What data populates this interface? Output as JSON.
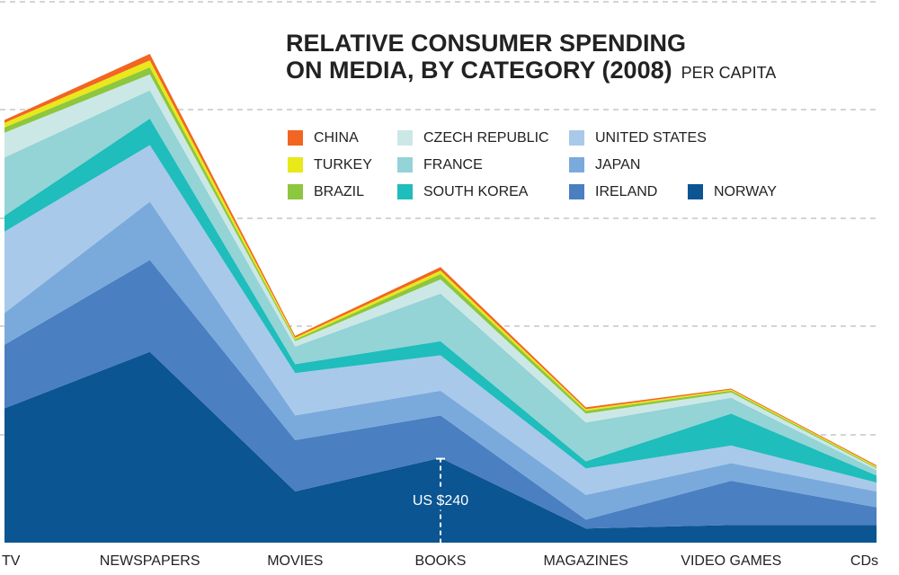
{
  "chart_data": {
    "type": "stacked-area",
    "title": [
      "RELATIVE CONSUMER SPENDING",
      "ON MEDIA, BY CATEGORY (2008)"
    ],
    "subtitle": "PER CAPITA",
    "annotation": "US $240",
    "categories": [
      "TV",
      "NEWSPAPERS",
      "MOVIES",
      "BOOKS",
      "MAGAZINES",
      "VIDEO GAMES",
      "CDs"
    ],
    "series": [
      {
        "name": "CHINA",
        "color": "#f26522",
        "values": [
          8,
          18,
          5,
          10,
          5,
          3,
          3
        ]
      },
      {
        "name": "TURKEY",
        "color": "#e8e81a",
        "values": [
          13,
          20,
          5,
          10,
          5,
          3,
          3
        ]
      },
      {
        "name": "BRAZIL",
        "color": "#8dc63f",
        "values": [
          15,
          20,
          5,
          15,
          8,
          5,
          3
        ]
      },
      {
        "name": "CZECH REPUBLIC",
        "color": "#cce8e6",
        "values": [
          70,
          45,
          15,
          40,
          25,
          15,
          5
        ]
      },
      {
        "name": "FRANCE",
        "color": "#94d3d6",
        "values": [
          165,
          80,
          50,
          135,
          110,
          45,
          15
        ]
      },
      {
        "name": "SOUTH KOREA",
        "color": "#1fbdbb",
        "values": [
          45,
          75,
          25,
          40,
          20,
          90,
          20
        ]
      },
      {
        "name": "UNITED STATES",
        "color": "#a9c9ea",
        "values": [
          230,
          160,
          120,
          100,
          75,
          50,
          25
        ]
      },
      {
        "name": "JAPAN",
        "color": "#7aaadc",
        "values": [
          90,
          165,
          70,
          70,
          70,
          50,
          45
        ]
      },
      {
        "name": "IRELAND",
        "color": "#4a7fc1",
        "values": [
          180,
          260,
          145,
          120,
          25,
          125,
          50
        ]
      },
      {
        "name": "NORWAY",
        "color": "#0b5592",
        "values": [
          380,
          540,
          145,
          240,
          40,
          50,
          50
        ]
      }
    ]
  }
}
